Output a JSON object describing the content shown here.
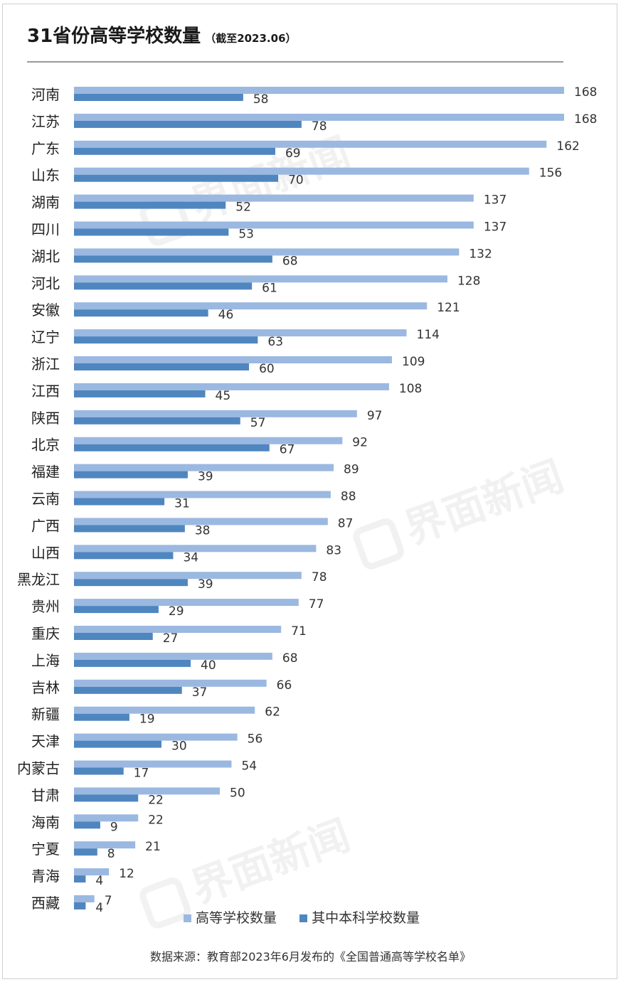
{
  "title": "31省份高等学校数量",
  "subtitle": "（截至2023.06）",
  "watermark": "界面新闻",
  "source": "数据来源：教育部2023年6月发布的《全国普通高等学校名单》",
  "colors": {
    "series1": "#9bb8e0",
    "series2": "#4f86c0"
  },
  "chart_data": {
    "type": "bar",
    "orientation": "horizontal",
    "categories": [
      "河南",
      "江苏",
      "广东",
      "山东",
      "湖南",
      "四川",
      "湖北",
      "河北",
      "安徽",
      "辽宁",
      "浙江",
      "江西",
      "陕西",
      "北京",
      "福建",
      "云南",
      "广西",
      "山西",
      "黑龙江",
      "贵州",
      "重庆",
      "上海",
      "吉林",
      "新疆",
      "天津",
      "内蒙古",
      "甘肃",
      "海南",
      "宁夏",
      "青海",
      "西藏"
    ],
    "series": [
      {
        "name": "高等学校数量",
        "values": [
          168,
          168,
          162,
          156,
          137,
          137,
          132,
          128,
          121,
          114,
          109,
          108,
          97,
          92,
          89,
          88,
          87,
          83,
          78,
          77,
          71,
          68,
          66,
          62,
          56,
          54,
          50,
          22,
          21,
          12,
          7
        ]
      },
      {
        "name": "其中本科学校数量",
        "values": [
          58,
          78,
          69,
          70,
          52,
          53,
          68,
          61,
          46,
          63,
          60,
          45,
          57,
          67,
          39,
          31,
          38,
          34,
          39,
          29,
          27,
          40,
          37,
          19,
          30,
          17,
          22,
          9,
          8,
          4,
          4
        ]
      }
    ],
    "xlim": [
      0,
      168
    ],
    "legend_position": "bottom",
    "grid": false
  }
}
